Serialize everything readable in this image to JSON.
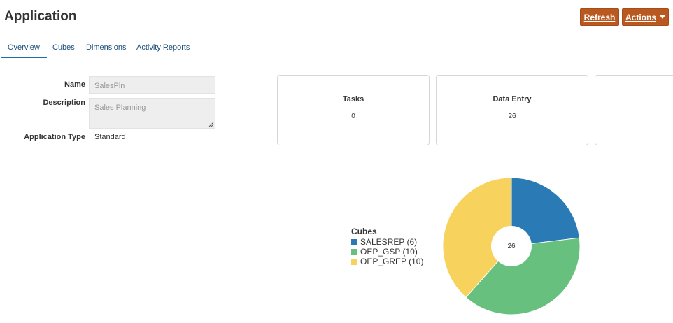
{
  "header": {
    "title": "Application",
    "refresh_label": "Refresh",
    "actions_label": "Actions"
  },
  "tabs": [
    {
      "label": "Overview",
      "active": true
    },
    {
      "label": "Cubes",
      "active": false
    },
    {
      "label": "Dimensions",
      "active": false
    },
    {
      "label": "Activity Reports",
      "active": false
    }
  ],
  "form": {
    "name_label": "Name",
    "name_value": "SalesPln",
    "description_label": "Description",
    "description_value": "Sales Planning",
    "type_label": "Application Type",
    "type_value": "Standard"
  },
  "cards": [
    {
      "title": "Tasks",
      "value": "0"
    },
    {
      "title": "Data Entry",
      "value": "26"
    }
  ],
  "legend": {
    "title": "Cubes",
    "items": [
      {
        "label": "SALESREP (6)",
        "color": "#2a7ab5"
      },
      {
        "label": "OEP_GSP (10)",
        "color": "#67c07e"
      },
      {
        "label": "OEP_GREP (10)",
        "color": "#f7d35e"
      }
    ]
  },
  "chart_data": {
    "type": "pie",
    "donut": true,
    "center_label": "26",
    "categories": [
      "SALESREP",
      "OEP_GSP",
      "OEP_GREP"
    ],
    "values": [
      6,
      10,
      10
    ],
    "colors": [
      "#2a7ab5",
      "#67c07e",
      "#f7d35e"
    ]
  }
}
